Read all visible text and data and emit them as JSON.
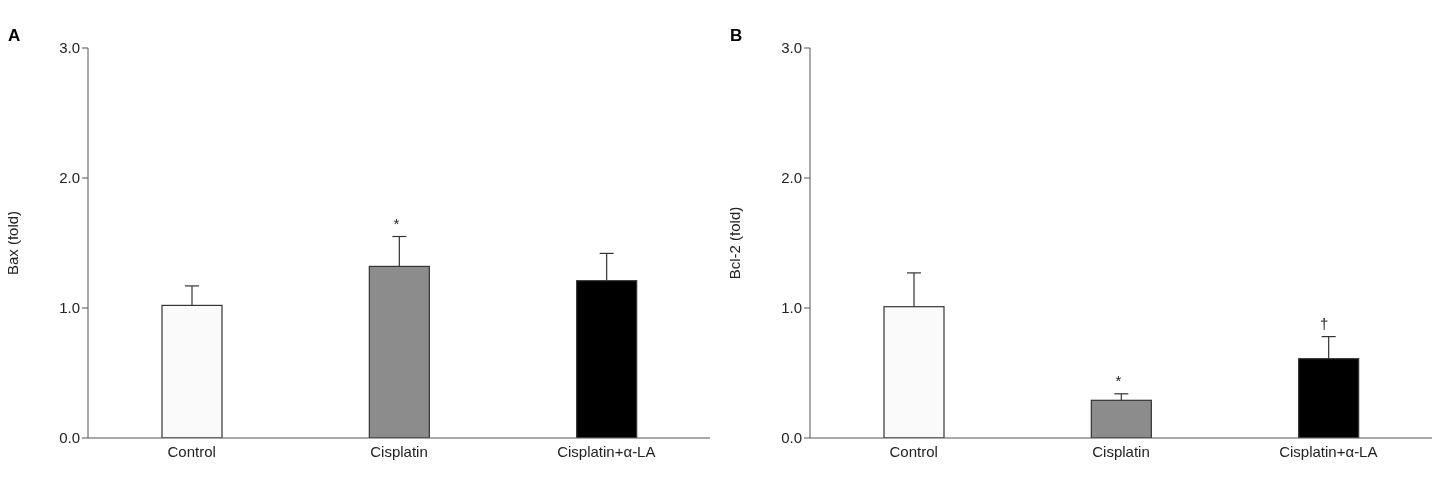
{
  "chart_data": [
    {
      "type": "bar",
      "title": "A",
      "ylabel": "Bax (fold)",
      "categories": [
        "Control",
        "Cisplatin",
        "Cisplatin+α-LA"
      ],
      "values": [
        1.02,
        1.32,
        1.21
      ],
      "errors": [
        0.15,
        0.23,
        0.21
      ],
      "colors": [
        "#fafafa",
        "#8c8c8c",
        "#000000"
      ],
      "ylim": [
        0,
        3
      ],
      "yticks": [
        {
          "value": 0,
          "label": "0.0"
        },
        {
          "value": 1,
          "label": "1.0"
        },
        {
          "value": 2,
          "label": "2.0"
        },
        {
          "value": 3,
          "label": "3.0"
        }
      ],
      "grid": false,
      "legend": false,
      "annotations": [
        {
          "text": "*",
          "x": "Cisplatin",
          "y": 1.55
        }
      ]
    },
    {
      "type": "bar",
      "title": "B",
      "ylabel": "Bcl-2 (fold)",
      "categories": [
        "Control",
        "Cisplatin",
        "Cisplatin+α-LA"
      ],
      "values": [
        1.01,
        0.29,
        0.61
      ],
      "errors": [
        0.26,
        0.05,
        0.17
      ],
      "colors": [
        "#fafafa",
        "#8c8c8c",
        "#000000"
      ],
      "ylim": [
        0,
        3
      ],
      "yticks": [
        {
          "value": 0,
          "label": "0.0"
        },
        {
          "value": 1,
          "label": "1.0"
        },
        {
          "value": 2,
          "label": "2.0"
        },
        {
          "value": 3,
          "label": "3.0"
        }
      ],
      "grid": false,
      "legend": false,
      "annotations": [
        {
          "text": "*",
          "x": "Cisplatin",
          "y": 0.34
        },
        {
          "text": "†",
          "x": "Cisplatin+α-LA",
          "y": 0.78
        }
      ]
    }
  ]
}
